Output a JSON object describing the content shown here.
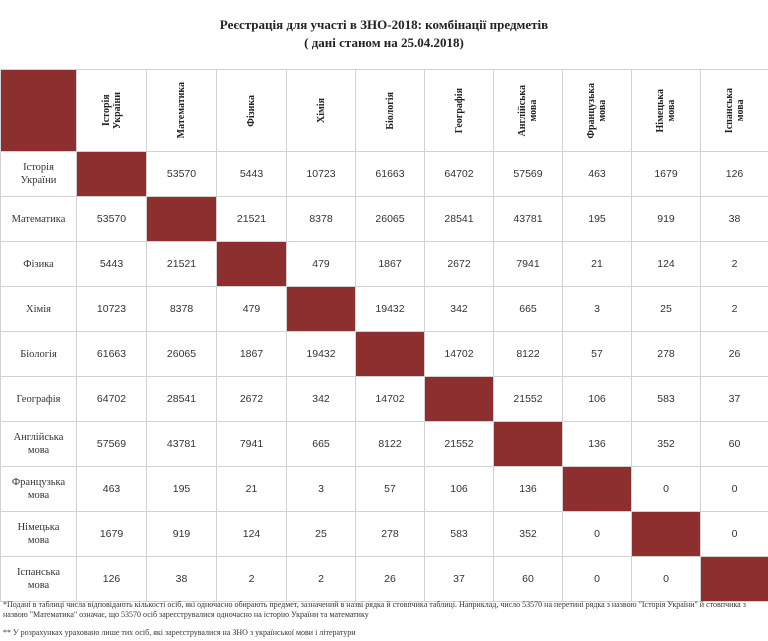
{
  "title": {
    "line1": "Реєстрація для участі в ЗНО-2018: комбінації предметів",
    "line2": "( дані станом на 25.04.2018)"
  },
  "subjects": [
    "Історія\nУкраїни",
    "Математика",
    "Фізика",
    "Хімія",
    "Біологія",
    "Географія",
    "Англійська\nмова",
    "Французька\nмова",
    "Німецька\nмова",
    "Іспанська\nмова"
  ],
  "matrix": [
    [
      "",
      "53570",
      "5443",
      "10723",
      "61663",
      "64702",
      "57569",
      "463",
      "1679",
      "126"
    ],
    [
      "53570",
      "",
      "21521",
      "8378",
      "26065",
      "28541",
      "43781",
      "195",
      "919",
      "38"
    ],
    [
      "5443",
      "21521",
      "",
      "479",
      "1867",
      "2672",
      "7941",
      "21",
      "124",
      "2"
    ],
    [
      "10723",
      "8378",
      "479",
      "",
      "19432",
      "342",
      "665",
      "3",
      "25",
      "2"
    ],
    [
      "61663",
      "26065",
      "1867",
      "19432",
      "",
      "14702",
      "8122",
      "57",
      "278",
      "26"
    ],
    [
      "64702",
      "28541",
      "2672",
      "342",
      "14702",
      "",
      "21552",
      "106",
      "583",
      "37"
    ],
    [
      "57569",
      "43781",
      "7941",
      "665",
      "8122",
      "21552",
      "",
      "136",
      "352",
      "60"
    ],
    [
      "463",
      "195",
      "21",
      "3",
      "57",
      "106",
      "136",
      "",
      "0",
      "0"
    ],
    [
      "1679",
      "919",
      "124",
      "25",
      "278",
      "583",
      "352",
      "0",
      "",
      "0"
    ],
    [
      "126",
      "38",
      "2",
      "2",
      "26",
      "37",
      "60",
      "0",
      "0",
      ""
    ]
  ],
  "notes": {
    "note1": "*Подані в таблиці числа відповідають кількості осіб, які одночасно обирають предмет, зазначений в назві рядка й стовпчика таблиці. Наприклад, число 53570 на перетині рядка з назвою \"Історія України\" й стовпчика з назвою \"Математика\" означає, що 53570 осіб зареєструвалися одночасно на історію України та математику",
    "note2": "** У розрахунках ураховано лише тих осіб, які зареєструвалися на ЗНО з української мови і літератури"
  },
  "colors": {
    "diagonal": "#8e2f2f",
    "grid": "#d2d2d2"
  }
}
